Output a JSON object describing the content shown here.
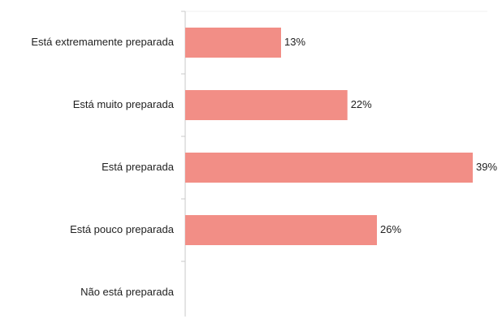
{
  "chart_data": {
    "type": "bar",
    "orientation": "horizontal",
    "categories": [
      "Está extremamente preparada",
      "Está muito preparada",
      "Está preparada",
      "Está pouco preparada",
      "Não está preparada"
    ],
    "values": [
      13,
      22,
      39,
      26,
      null
    ],
    "data_labels": [
      "13%",
      "22%",
      "39%",
      "26%",
      ""
    ],
    "value_unit": "%",
    "xlim": [
      0,
      39
    ],
    "grid": false,
    "legend": "none",
    "bar_color": "#f28e86",
    "axis_color": "#c8c8c8"
  }
}
